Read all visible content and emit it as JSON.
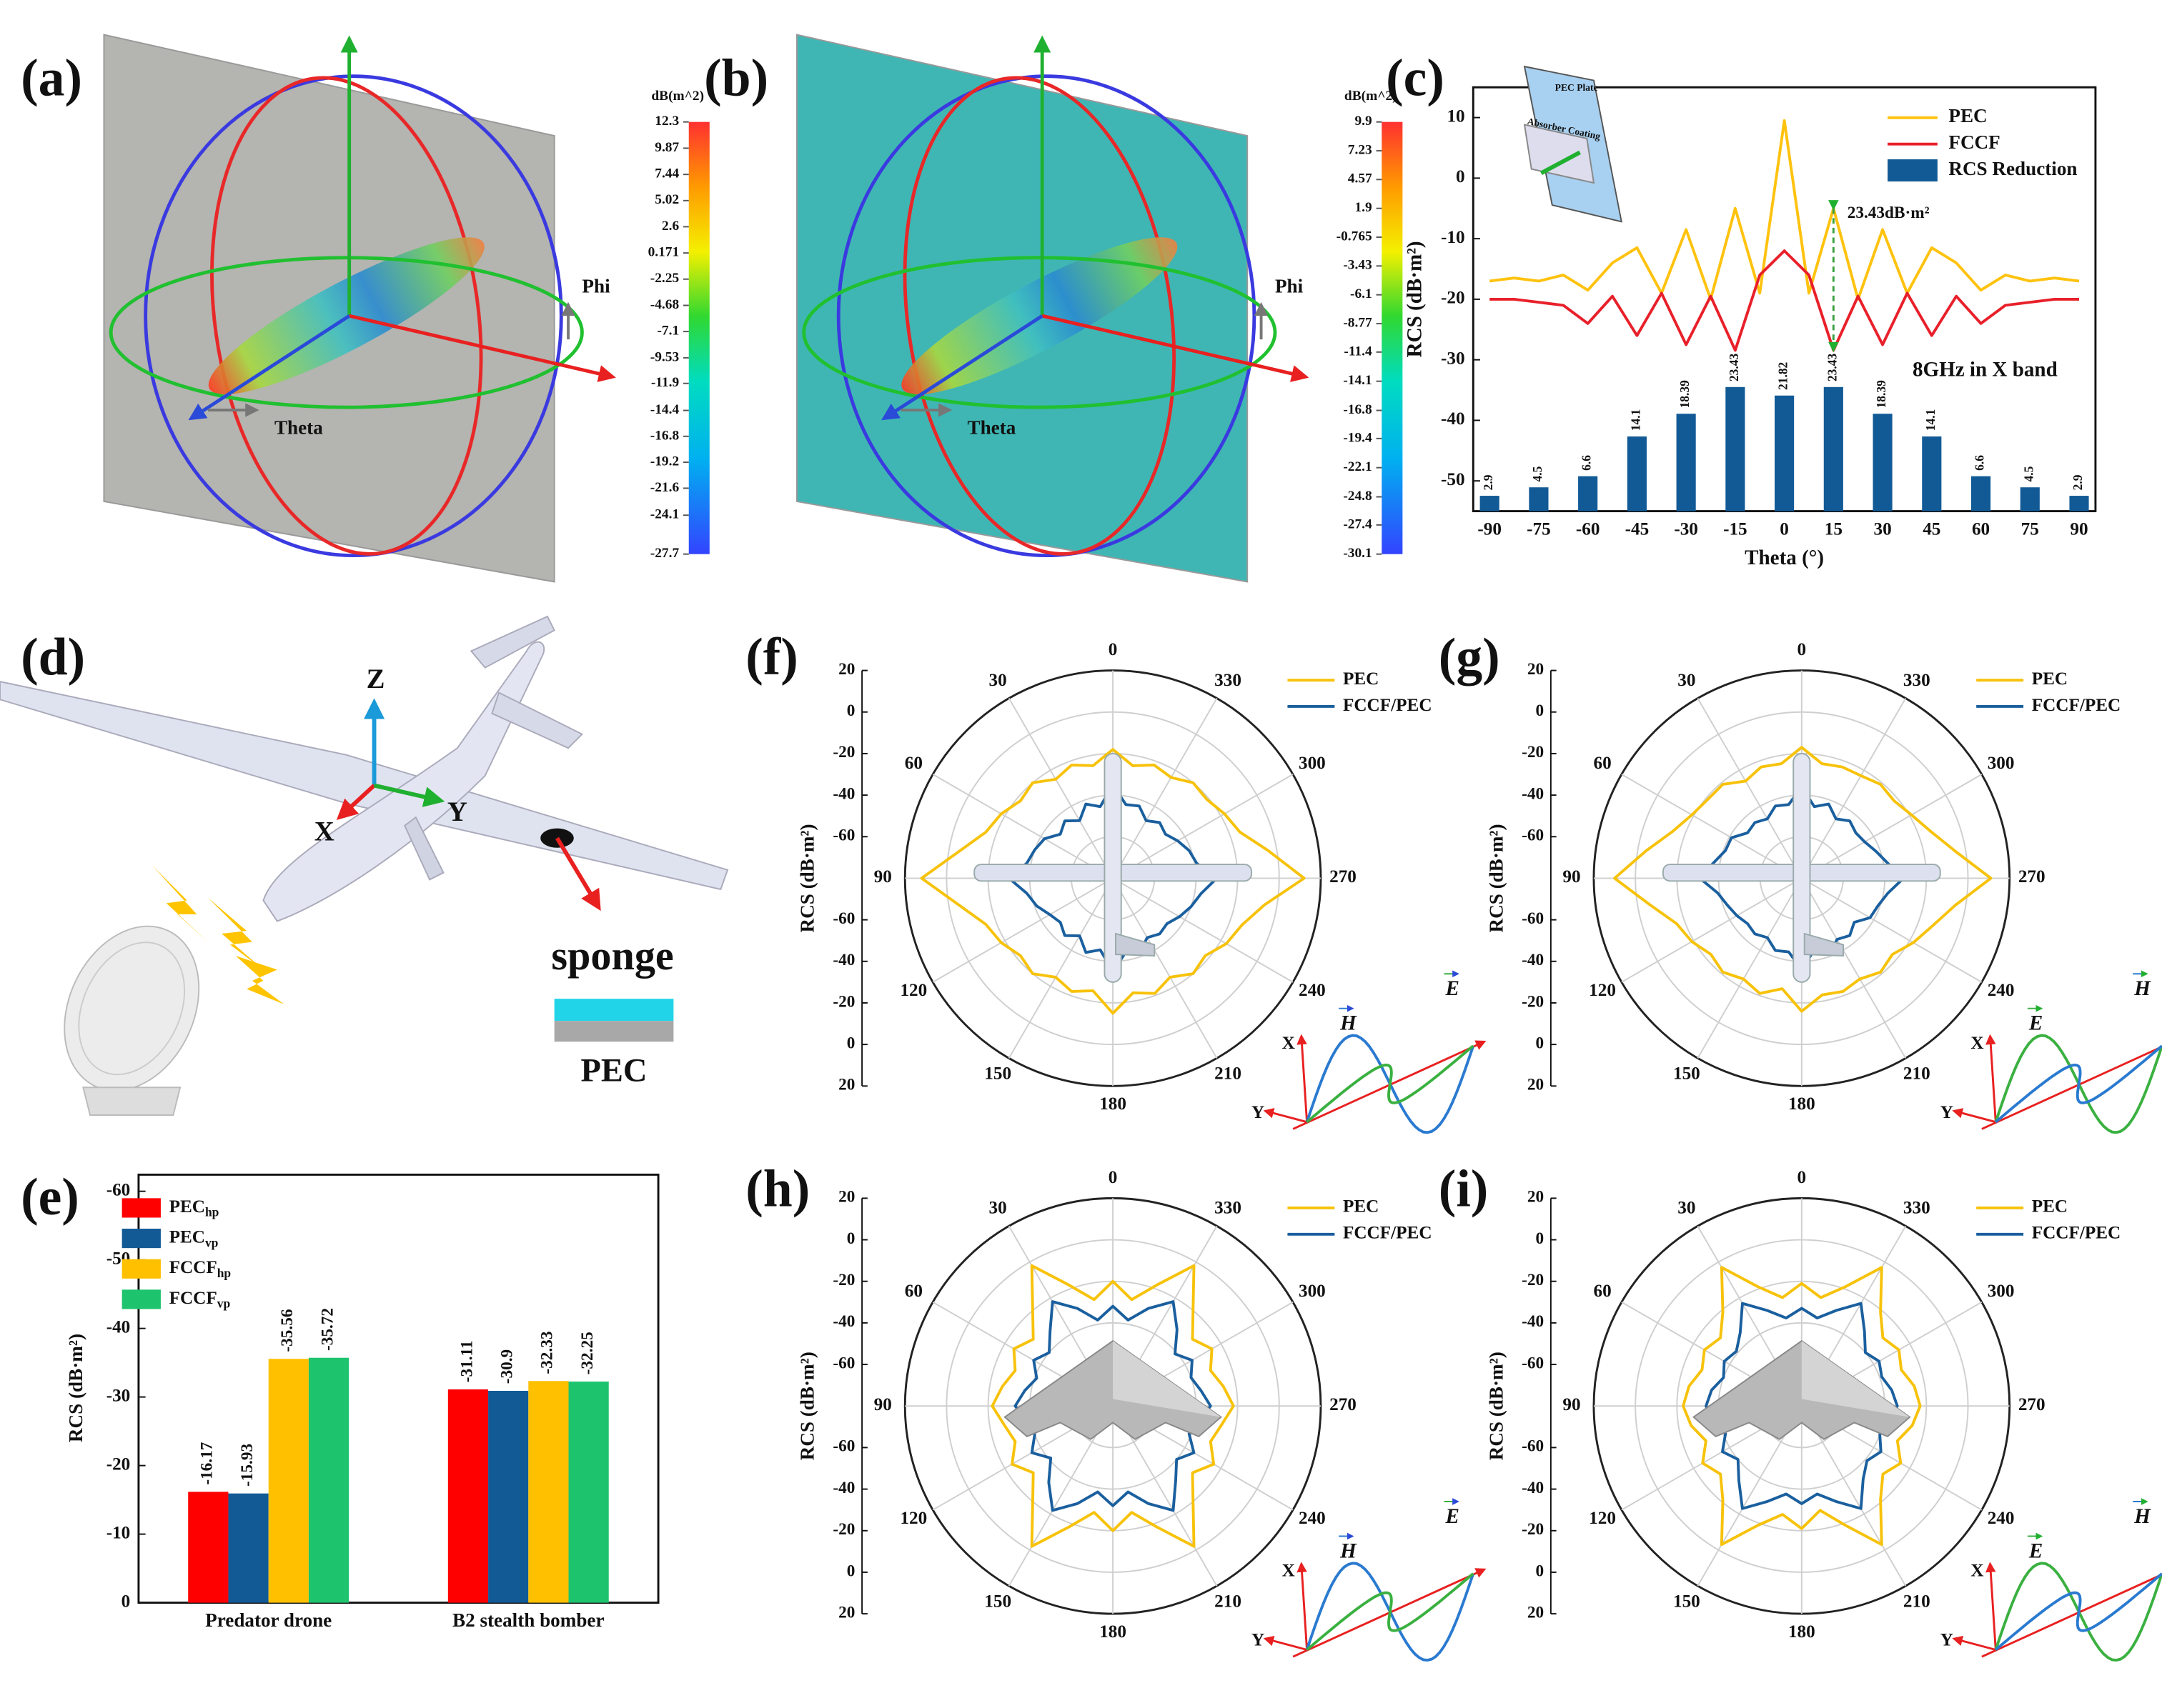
{
  "panel_labels": [
    "(a)",
    "(b)",
    "(c)",
    "(d)",
    "(e)",
    "(f)",
    "(g)",
    "(h)",
    "(i)"
  ],
  "panel_a": {
    "colorbar_title": "dB(m^2)",
    "colorbar_ticks": [
      12.3,
      9.87,
      7.44,
      5.02,
      2.6,
      0.171,
      -2.25,
      -4.68,
      -7.1,
      -9.53,
      -11.9,
      -14.4,
      -16.8,
      -19.2,
      -21.6,
      -24.1,
      -27.7
    ],
    "axis_labels": [
      "Phi",
      "Theta"
    ]
  },
  "panel_b": {
    "colorbar_title": "dB(m^2)",
    "colorbar_ticks": [
      9.9,
      7.23,
      4.57,
      1.9,
      -0.765,
      -3.43,
      -6.1,
      -8.77,
      -11.4,
      -14.1,
      -16.8,
      -19.4,
      -22.1,
      -24.8,
      -27.4,
      -30.1
    ],
    "axis_labels": [
      "Phi",
      "Theta"
    ]
  },
  "panel_d": {
    "axes": [
      "Z",
      "X",
      "Y"
    ],
    "labels": [
      "sponge",
      "PEC"
    ]
  },
  "wave_labels": {
    "axes": [
      "X",
      "Y"
    ],
    "vectors": [
      "H",
      "E"
    ]
  },
  "chart_data": [
    {
      "type": "combo",
      "ylabel": "RCS (dB·m²)",
      "xlabel": "Theta (°)",
      "x": [
        -90,
        -82.5,
        -75,
        -67.5,
        -60,
        -52.5,
        -45,
        -37.5,
        -30,
        -22.5,
        -15,
        -7.5,
        0,
        7.5,
        15,
        22.5,
        30,
        37.5,
        45,
        52.5,
        60,
        67.5,
        75,
        82.5,
        90
      ],
      "series": [
        {
          "name": "PEC",
          "color": "#ffc20e",
          "values": [
            -17,
            -16.5,
            -17,
            -16,
            -18.5,
            -14,
            -11.5,
            -19,
            -8.5,
            -20,
            -5,
            -19,
            9.5,
            -19,
            -5,
            -20,
            -8.5,
            -19,
            -11.5,
            -14,
            -18.5,
            -16,
            -17,
            -16.5,
            -17
          ]
        },
        {
          "name": "FCCF",
          "color": "#e8202a",
          "values": [
            -20,
            -20,
            -20.5,
            -21,
            -24,
            -19.5,
            -26,
            -19,
            -27.5,
            -19.5,
            -28.43,
            -16,
            -12,
            -16,
            -28.43,
            -19.5,
            -27.5,
            -19,
            -26,
            -19.5,
            -24,
            -21,
            -20.5,
            -20,
            -20
          ]
        },
        {
          "name": "RCS Reduction",
          "color": "#125a96",
          "type": "bar",
          "axis": "y2",
          "x": [
            -90,
            -75,
            -60,
            -45,
            -30,
            -15,
            0,
            15,
            30,
            45,
            60,
            75,
            90
          ],
          "values": [
            2.9,
            4.5,
            6.6,
            14.1,
            18.39,
            23.43,
            21.82,
            23.43,
            18.39,
            14.1,
            6.6,
            4.5,
            2.9
          ]
        }
      ],
      "xlim": [
        -95,
        95
      ],
      "xticks": [
        -90,
        -75,
        -60,
        -45,
        -30,
        -15,
        0,
        15,
        30,
        45,
        60,
        75,
        90
      ],
      "ylim": [
        -55,
        15
      ],
      "yticks": [
        -50,
        -40,
        -30,
        -20,
        -10,
        0,
        10
      ],
      "y2lim": [
        0,
        80
      ],
      "annotations": [
        "23.43dB·m²",
        "8GHz in X band"
      ],
      "inset_labels": [
        "PEC Plate",
        "Absorber Coating"
      ]
    },
    {
      "type": "bar",
      "ylabel": "RCS (dB·m²)",
      "categories": [
        "Predator drone",
        "B2 stealth bomber"
      ],
      "series": [
        {
          "name": "PEC",
          "subscript": "hp",
          "color": "#ff0000",
          "values": [
            -16.17,
            -31.11
          ]
        },
        {
          "name": "PEC",
          "subscript": "vp",
          "color": "#125a96",
          "values": [
            -15.93,
            -30.9
          ]
        },
        {
          "name": "FCCF",
          "subscript": "hp",
          "color": "#ffc000",
          "values": [
            -35.56,
            -32.33
          ]
        },
        {
          "name": "FCCF",
          "subscript": "vp",
          "color": "#1ec36e",
          "values": [
            -35.72,
            -32.25
          ]
        }
      ],
      "ylim": [
        0,
        -60
      ],
      "yticks": [
        0,
        -10,
        -20,
        -30,
        -40,
        -50,
        -60
      ]
    },
    {
      "type": "polar",
      "ylabel": "RCS (dB·m²)",
      "rlim": [
        -80,
        20
      ],
      "rticks": [
        -60,
        -40,
        -20,
        0,
        20
      ],
      "angles": [
        0,
        30,
        60,
        90,
        120,
        150,
        180,
        210,
        240,
        270,
        300,
        330
      ],
      "theta": [
        0,
        10,
        20,
        30,
        40,
        50,
        60,
        70,
        80,
        90,
        100,
        110,
        120,
        130,
        140,
        150,
        160,
        170,
        180,
        190,
        200,
        210,
        220,
        230,
        240,
        250,
        260,
        270,
        280,
        290,
        300,
        310,
        320,
        330,
        340,
        350
      ],
      "series": [
        {
          "name": "PEC",
          "color": "#f7c20a",
          "values": [
            -18,
            -25,
            -22,
            -25,
            -20,
            -22,
            -18,
            -15,
            -5,
            12,
            -5,
            -15,
            -18,
            -22,
            -20,
            -25,
            -22,
            -25,
            -15,
            -24,
            -21,
            -25,
            -20,
            -22,
            -17,
            -14,
            -6,
            12,
            -4,
            -15,
            -18,
            -21,
            -20,
            -24,
            -22,
            -25
          ]
        },
        {
          "name": "FCCF/PEC",
          "color": "#1a5f9e",
          "values": [
            -35,
            -45,
            -42,
            -48,
            -44,
            -47,
            -42,
            -40,
            -38,
            -30,
            -38,
            -41,
            -45,
            -47,
            -44,
            -48,
            -42,
            -45,
            -35,
            -44,
            -42,
            -47,
            -45,
            -46,
            -43,
            -40,
            -37,
            -30,
            -39,
            -41,
            -44,
            -47,
            -45,
            -48,
            -43,
            -44
          ]
        }
      ]
    },
    {
      "type": "polar",
      "ylabel": "RCS (dB·m²)",
      "rlim": [
        -80,
        20
      ],
      "rticks": [
        -60,
        -40,
        -20,
        0,
        20
      ],
      "angles": [
        0,
        30,
        60,
        90,
        120,
        150,
        180,
        210,
        240,
        270,
        300,
        330
      ],
      "theta": [
        0,
        10,
        20,
        30,
        40,
        50,
        60,
        70,
        80,
        90,
        100,
        110,
        120,
        130,
        140,
        150,
        160,
        170,
        180,
        190,
        200,
        210,
        220,
        230,
        240,
        250,
        260,
        270,
        280,
        290,
        300,
        310,
        320,
        330,
        340,
        350
      ],
      "series": [
        {
          "name": "PEC",
          "color": "#f7c20a",
          "values": [
            -17,
            -24,
            -23,
            -26,
            -21,
            -21,
            -19,
            -14,
            -4,
            10,
            -6,
            -16,
            -19,
            -23,
            -21,
            -24,
            -21,
            -26,
            -16,
            -23,
            -22,
            -24,
            -21,
            -23,
            -18,
            -13,
            -5,
            11,
            -5,
            -14,
            -19,
            -22,
            -21,
            -23,
            -23,
            -24
          ]
        },
        {
          "name": "FCCF/PEC",
          "color": "#1a5f9e",
          "values": [
            -36,
            -44,
            -43,
            -47,
            -45,
            -46,
            -41,
            -41,
            -37,
            -31,
            -39,
            -42,
            -44,
            -46,
            -45,
            -47,
            -43,
            -44,
            -36,
            -45,
            -41,
            -46,
            -44,
            -47,
            -42,
            -41,
            -38,
            -31,
            -38,
            -42,
            -45,
            -46,
            -44,
            -47,
            -42,
            -45
          ]
        }
      ]
    },
    {
      "type": "polar",
      "ylabel": "RCS (dB·m²)",
      "rlim": [
        -80,
        20
      ],
      "rticks": [
        -60,
        -40,
        -20,
        0,
        20
      ],
      "angles": [
        0,
        30,
        60,
        90,
        120,
        150,
        180,
        210,
        240,
        270,
        300,
        330
      ],
      "theta": [
        0,
        10,
        20,
        30,
        40,
        50,
        60,
        70,
        80,
        90,
        100,
        110,
        120,
        130,
        140,
        150,
        160,
        170,
        180,
        190,
        200,
        210,
        220,
        230,
        240,
        250,
        260,
        270,
        280,
        290,
        300,
        310,
        320,
        330,
        340,
        350
      ],
      "series": [
        {
          "name": "PEC",
          "color": "#f7c20a",
          "values": [
            -20,
            -28,
            -18,
            -2,
            -20,
            -30,
            -25,
            -30,
            -26,
            -22,
            -27,
            -30,
            -24,
            -30,
            -20,
            -2,
            -18,
            -28,
            -20,
            -28,
            -18,
            -2,
            -20,
            -30,
            -24,
            -30,
            -27,
            -22,
            -26,
            -30,
            -25,
            -30,
            -20,
            -2,
            -18,
            -28
          ]
        },
        {
          "name": "FCCF/PEC",
          "color": "#1a5f9e",
          "values": [
            -32,
            -38,
            -30,
            -22,
            -33,
            -40,
            -36,
            -41,
            -37,
            -33,
            -38,
            -40,
            -35,
            -41,
            -32,
            -22,
            -30,
            -38,
            -32,
            -38,
            -30,
            -22,
            -33,
            -40,
            -35,
            -41,
            -38,
            -33,
            -37,
            -40,
            -36,
            -41,
            -32,
            -22,
            -30,
            -38
          ]
        }
      ]
    },
    {
      "type": "polar",
      "ylabel": "RCS (dB·m²)",
      "rlim": [
        -80,
        20
      ],
      "rticks": [
        -60,
        -40,
        -20,
        0,
        20
      ],
      "angles": [
        0,
        30,
        60,
        90,
        120,
        150,
        180,
        210,
        240,
        270,
        300,
        330
      ],
      "theta": [
        0,
        10,
        20,
        30,
        40,
        50,
        60,
        70,
        80,
        90,
        100,
        110,
        120,
        130,
        140,
        150,
        160,
        170,
        180,
        190,
        200,
        210,
        220,
        230,
        240,
        250,
        260,
        270,
        280,
        290,
        300,
        310,
        320,
        330,
        340,
        350
      ],
      "series": [
        {
          "name": "PEC",
          "color": "#f7c20a",
          "values": [
            -21,
            -27,
            -19,
            -3,
            -21,
            -29,
            -26,
            -29,
            -25,
            -23,
            -26,
            -31,
            -25,
            -29,
            -21,
            -3,
            -19,
            -27,
            -21,
            -29,
            -19,
            -3,
            -21,
            -29,
            -25,
            -31,
            -26,
            -23,
            -25,
            -29,
            -26,
            -29,
            -21,
            -3,
            -19,
            -27
          ]
        },
        {
          "name": "FCCF/PEC",
          "color": "#1a5f9e",
          "values": [
            -33,
            -37,
            -31,
            -23,
            -34,
            -39,
            -37,
            -40,
            -36,
            -34,
            -37,
            -41,
            -36,
            -40,
            -33,
            -23,
            -31,
            -37,
            -33,
            -37,
            -31,
            -23,
            -34,
            -39,
            -36,
            -40,
            -37,
            -34,
            -36,
            -39,
            -37,
            -40,
            -33,
            -23,
            -31,
            -37
          ]
        }
      ]
    }
  ]
}
